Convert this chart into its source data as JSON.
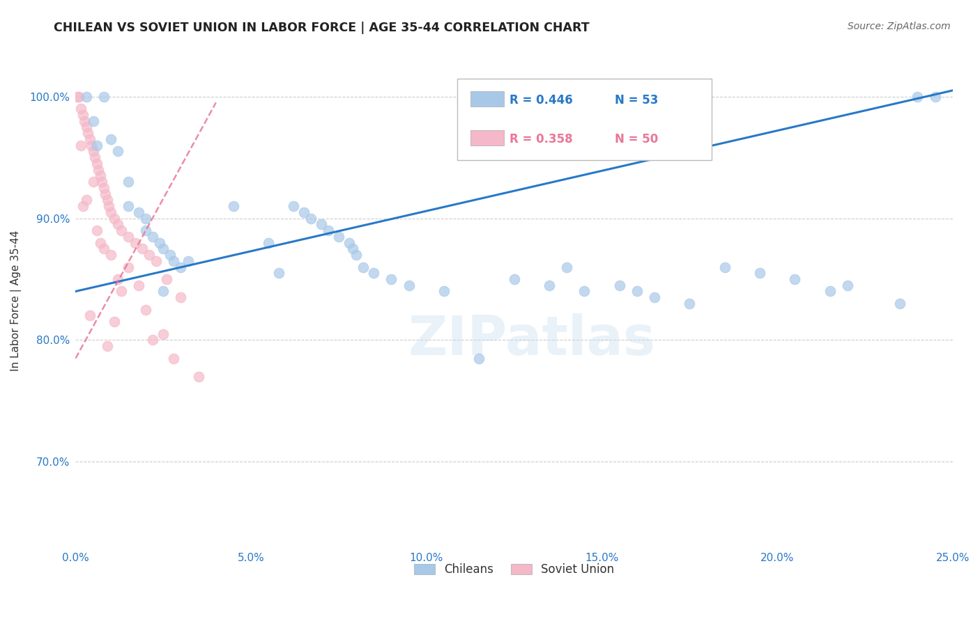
{
  "title": "CHILEAN VS SOVIET UNION IN LABOR FORCE | AGE 35-44 CORRELATION CHART",
  "source": "Source: ZipAtlas.com",
  "ylabel": "In Labor Force | Age 35-44",
  "watermark": "ZIPatlas",
  "blue_label": "Chileans",
  "pink_label": "Soviet Union",
  "blue_R": 0.446,
  "blue_N": 53,
  "pink_R": 0.358,
  "pink_N": 50,
  "blue_color": "#a8c8e8",
  "pink_color": "#f4b8c8",
  "blue_line_color": "#2878c8",
  "pink_line_color": "#e87898",
  "xlim": [
    0.0,
    25.0
  ],
  "ylim": [
    63.0,
    103.5
  ],
  "yticks": [
    70.0,
    80.0,
    90.0,
    100.0
  ],
  "xticks": [
    0.0,
    5.0,
    10.0,
    15.0,
    20.0,
    25.0
  ],
  "blue_x": [
    0.3,
    0.5,
    0.6,
    0.8,
    1.0,
    1.2,
    1.5,
    1.5,
    1.8,
    2.0,
    2.0,
    2.2,
    2.4,
    2.5,
    2.7,
    2.8,
    3.0,
    3.2,
    4.5,
    5.5,
    5.8,
    6.2,
    6.5,
    6.7,
    7.0,
    7.2,
    7.5,
    7.8,
    7.9,
    8.0,
    8.2,
    8.5,
    9.0,
    9.5,
    10.5,
    11.5,
    12.5,
    13.5,
    14.0,
    14.5,
    15.5,
    16.0,
    16.5,
    17.5,
    18.5,
    19.5,
    20.5,
    21.5,
    22.0,
    23.5,
    24.0,
    24.5,
    2.5
  ],
  "blue_y": [
    100.0,
    98.0,
    96.0,
    100.0,
    96.5,
    95.5,
    93.0,
    91.0,
    90.5,
    90.0,
    89.0,
    88.5,
    88.0,
    87.5,
    87.0,
    86.5,
    86.0,
    86.5,
    91.0,
    88.0,
    85.5,
    91.0,
    90.5,
    90.0,
    89.5,
    89.0,
    88.5,
    88.0,
    87.5,
    87.0,
    86.0,
    85.5,
    85.0,
    84.5,
    84.0,
    78.5,
    85.0,
    84.5,
    86.0,
    84.0,
    84.5,
    84.0,
    83.5,
    83.0,
    86.0,
    85.5,
    85.0,
    84.0,
    84.5,
    83.0,
    100.0,
    100.0,
    84.0
  ],
  "pink_x": [
    0.05,
    0.1,
    0.15,
    0.2,
    0.25,
    0.3,
    0.35,
    0.4,
    0.45,
    0.5,
    0.55,
    0.6,
    0.65,
    0.7,
    0.75,
    0.8,
    0.85,
    0.9,
    0.95,
    1.0,
    1.1,
    1.2,
    1.3,
    1.5,
    1.7,
    1.9,
    2.1,
    2.3,
    2.6,
    3.0,
    0.15,
    0.6,
    1.0,
    1.8,
    0.3,
    0.7,
    1.2,
    2.0,
    0.5,
    1.5,
    0.2,
    0.8,
    1.3,
    2.2,
    0.4,
    1.1,
    2.5,
    0.9,
    2.8,
    3.5
  ],
  "pink_y": [
    100.0,
    100.0,
    99.0,
    98.5,
    98.0,
    97.5,
    97.0,
    96.5,
    96.0,
    95.5,
    95.0,
    94.5,
    94.0,
    93.5,
    93.0,
    92.5,
    92.0,
    91.5,
    91.0,
    90.5,
    90.0,
    89.5,
    89.0,
    88.5,
    88.0,
    87.5,
    87.0,
    86.5,
    85.0,
    83.5,
    96.0,
    89.0,
    87.0,
    84.5,
    91.5,
    88.0,
    85.0,
    82.5,
    93.0,
    86.0,
    91.0,
    87.5,
    84.0,
    80.0,
    82.0,
    81.5,
    80.5,
    79.5,
    78.5,
    77.0
  ],
  "blue_trend_x": [
    0.0,
    25.0
  ],
  "blue_trend_y": [
    84.0,
    100.5
  ],
  "pink_trend_x": [
    0.0,
    4.0
  ],
  "pink_trend_y": [
    78.5,
    99.5
  ]
}
